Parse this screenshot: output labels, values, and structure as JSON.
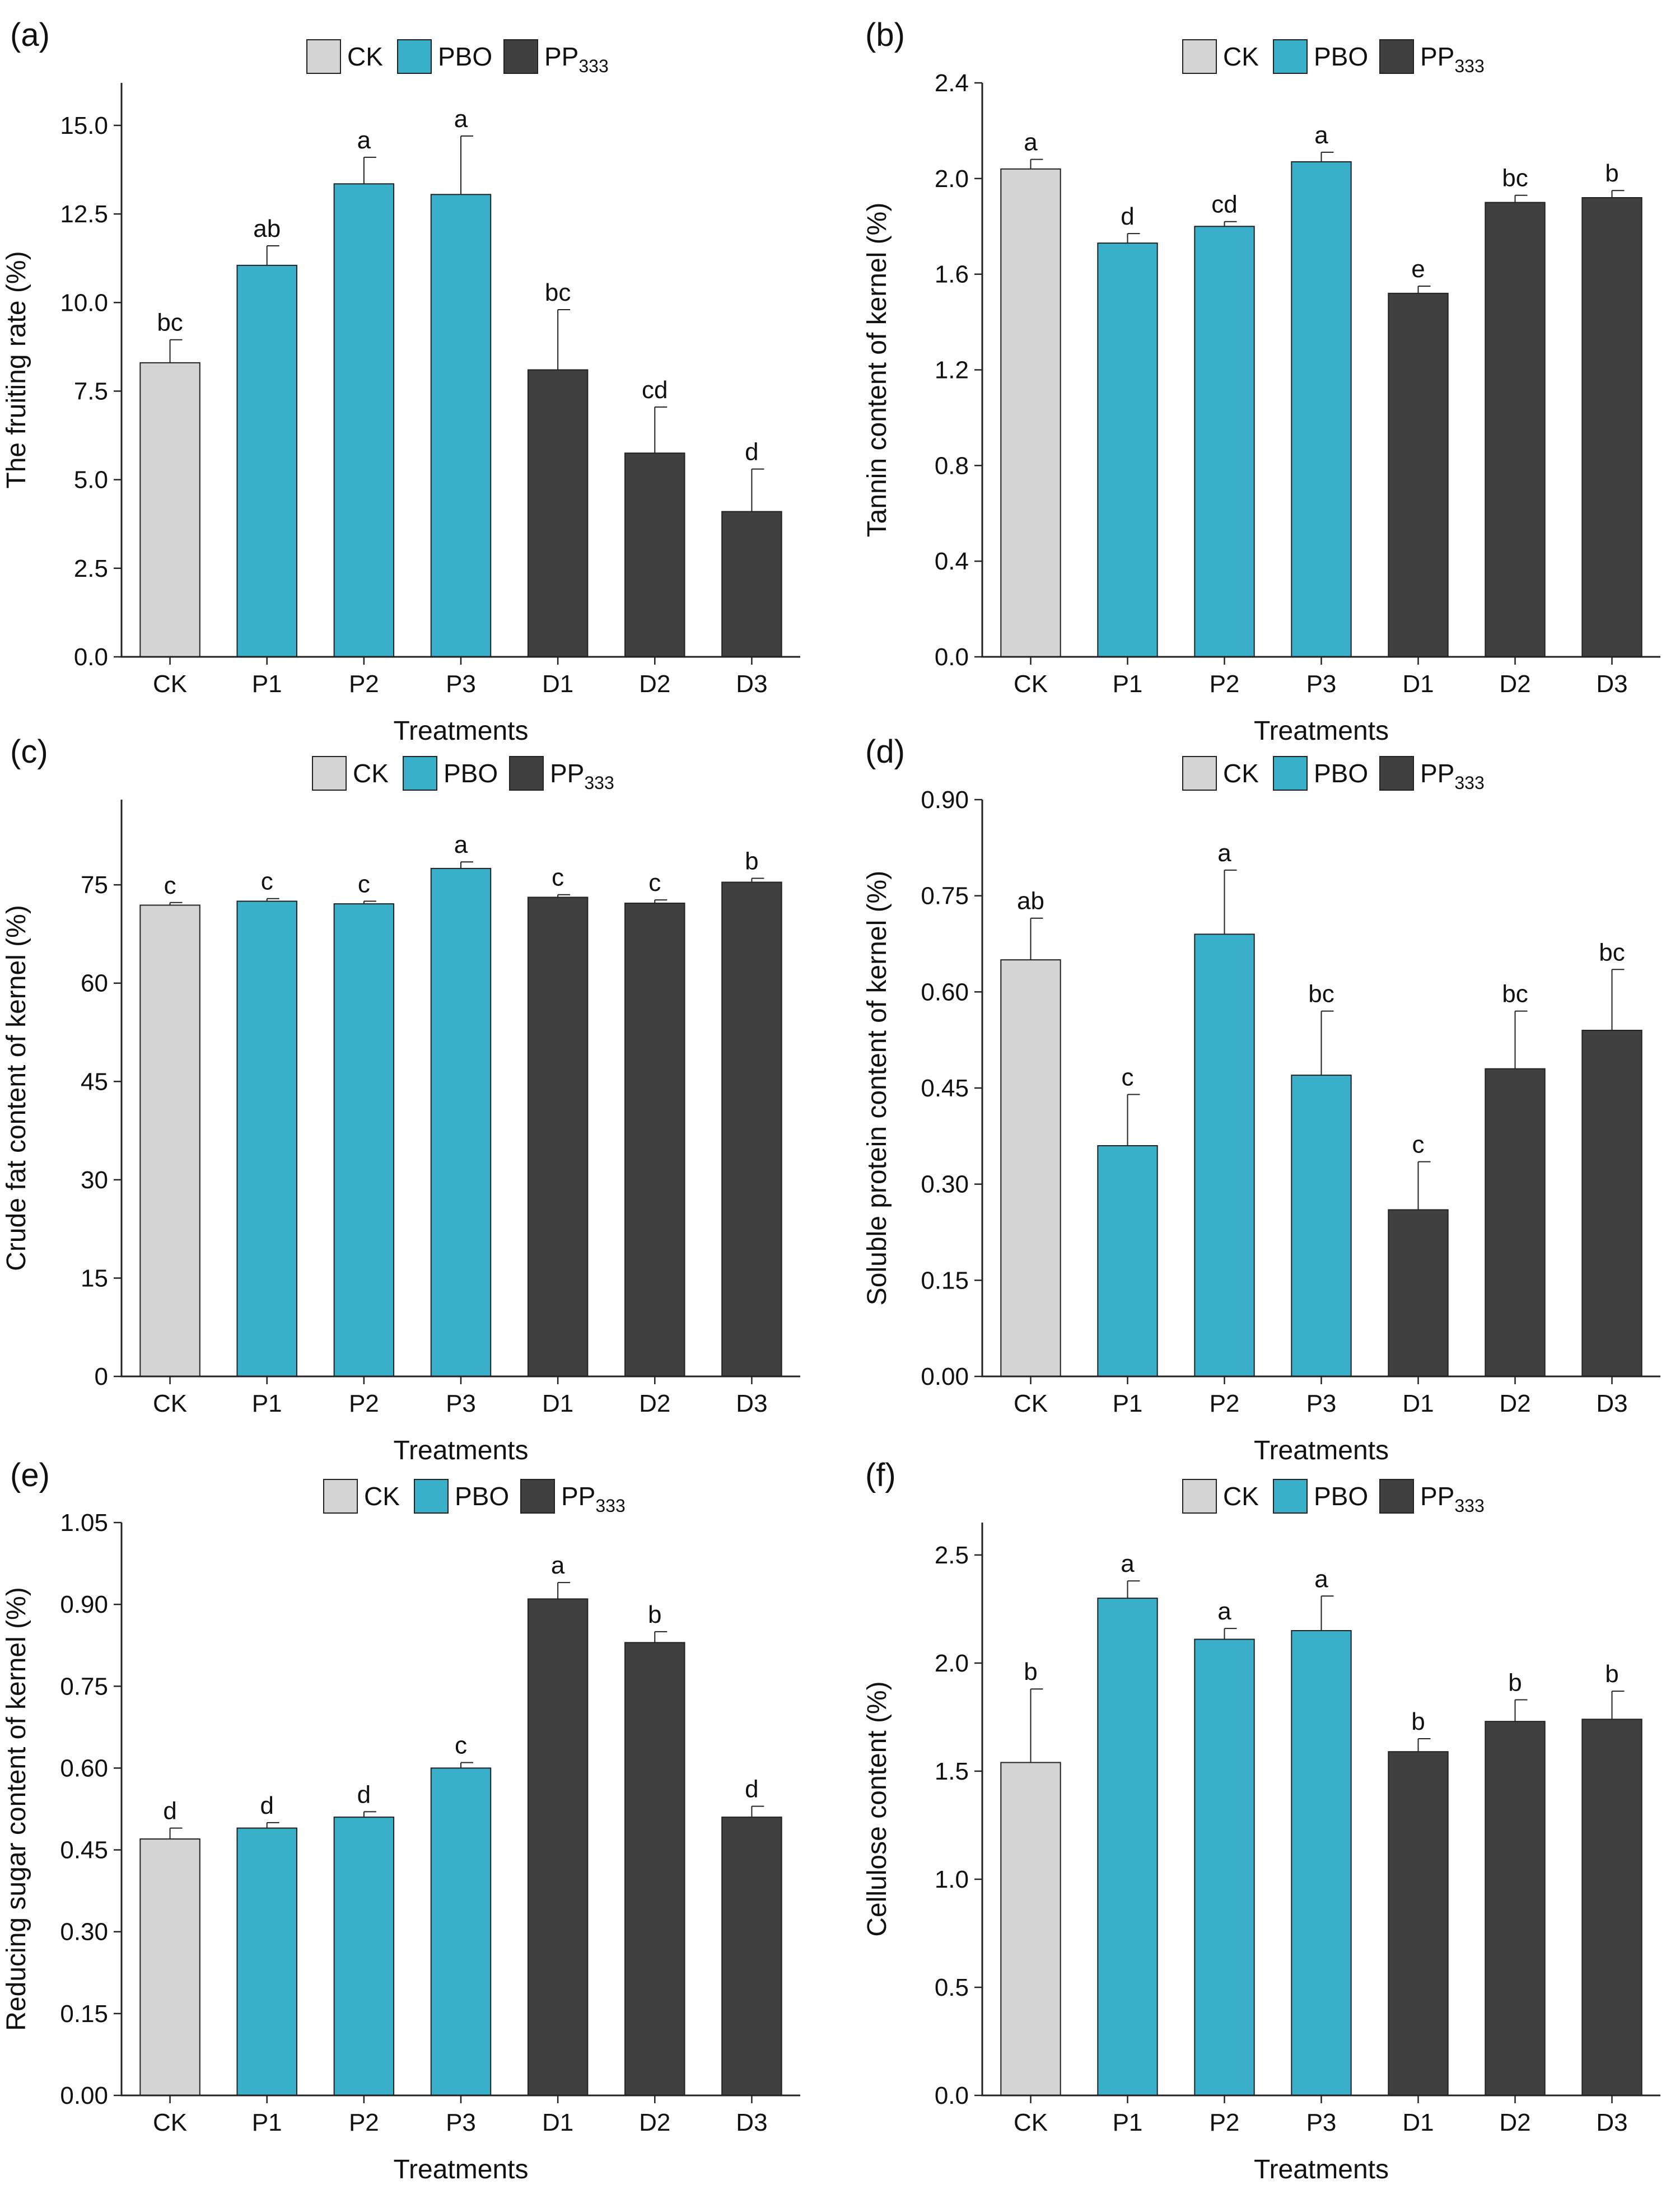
{
  "figure": {
    "legend": {
      "items": [
        {
          "key": "CK",
          "label": "CK",
          "sub": "",
          "color": "#d4d4d4"
        },
        {
          "key": "PBO",
          "label": "PBO",
          "sub": "",
          "color": "#3aafc9"
        },
        {
          "key": "PP",
          "label": "PP",
          "sub": "333",
          "color": "#404040"
        }
      ]
    }
  },
  "chart_data": [
    {
      "panel": "(a)",
      "type": "bar",
      "title": "",
      "xlabel": "Treatments",
      "ylabel": "The fruiting rate (%)",
      "categories": [
        "CK",
        "P1",
        "P2",
        "P3",
        "D1",
        "D2",
        "D3"
      ],
      "groups": [
        "CK",
        "PBO",
        "PBO",
        "PBO",
        "PP",
        "PP",
        "PP"
      ],
      "values": [
        8.3,
        11.05,
        13.35,
        13.05,
        8.1,
        5.75,
        4.1
      ],
      "errors": [
        0.65,
        0.55,
        0.75,
        1.65,
        1.7,
        1.3,
        1.2
      ],
      "letters": [
        "bc",
        "ab",
        "a",
        "a",
        "bc",
        "cd",
        "d"
      ],
      "ylim": [
        0,
        16.2
      ],
      "yticks": [
        0,
        2.5,
        5,
        7.5,
        10,
        12.5,
        15
      ],
      "ytick_labels": [
        "0.0",
        "2.5",
        "5.0",
        "7.5",
        "10.0",
        "12.5",
        "15.0"
      ]
    },
    {
      "panel": "(b)",
      "type": "bar",
      "title": "",
      "xlabel": "Treatments",
      "ylabel": "Tannin content of kernel (%)",
      "categories": [
        "CK",
        "P1",
        "P2",
        "P3",
        "D1",
        "D2",
        "D3"
      ],
      "groups": [
        "CK",
        "PBO",
        "PBO",
        "PBO",
        "PP",
        "PP",
        "PP"
      ],
      "values": [
        2.04,
        1.73,
        1.8,
        2.07,
        1.52,
        1.9,
        1.92
      ],
      "errors": [
        0.04,
        0.04,
        0.02,
        0.04,
        0.03,
        0.03,
        0.03
      ],
      "letters": [
        "a",
        "d",
        "cd",
        "a",
        "e",
        "bc",
        "b"
      ],
      "ylim": [
        0,
        2.4
      ],
      "yticks": [
        0,
        0.4,
        0.8,
        1.2,
        1.6,
        2.0,
        2.4
      ],
      "ytick_labels": [
        "0.0",
        "0.4",
        "0.8",
        "1.2",
        "1.6",
        "2.0",
        "2.4"
      ]
    },
    {
      "panel": "(c)",
      "type": "bar",
      "title": "",
      "xlabel": "Treatments",
      "ylabel": "Crude fat content of kernel (%)",
      "categories": [
        "CK",
        "P1",
        "P2",
        "P3",
        "D1",
        "D2",
        "D3"
      ],
      "groups": [
        "CK",
        "PBO",
        "PBO",
        "PBO",
        "PP",
        "PP",
        "PP"
      ],
      "values": [
        71.9,
        72.5,
        72.1,
        77.5,
        73.1,
        72.2,
        75.4
      ],
      "errors": [
        0.4,
        0.4,
        0.4,
        1.0,
        0.4,
        0.5,
        0.6
      ],
      "letters": [
        "c",
        "c",
        "c",
        "a",
        "c",
        "c",
        "b"
      ],
      "ylim": [
        0,
        88
      ],
      "yticks": [
        0,
        15,
        30,
        45,
        60,
        75
      ],
      "ytick_labels": [
        "0",
        "15",
        "30",
        "45",
        "60",
        "75"
      ]
    },
    {
      "panel": "(d)",
      "type": "bar",
      "title": "",
      "xlabel": "Treatments",
      "ylabel": "Soluble protein content of kernel (%)",
      "categories": [
        "CK",
        "P1",
        "P2",
        "P3",
        "D1",
        "D2",
        "D3"
      ],
      "groups": [
        "CK",
        "PBO",
        "PBO",
        "PBO",
        "PP",
        "PP",
        "PP"
      ],
      "values": [
        0.65,
        0.36,
        0.69,
        0.47,
        0.26,
        0.48,
        0.54
      ],
      "errors": [
        0.065,
        0.08,
        0.1,
        0.1,
        0.075,
        0.09,
        0.095
      ],
      "letters": [
        "ab",
        "c",
        "a",
        "bc",
        "c",
        "bc",
        "bc"
      ],
      "ylim": [
        0,
        0.9
      ],
      "yticks": [
        0,
        0.15,
        0.3,
        0.45,
        0.6,
        0.75,
        0.9
      ],
      "ytick_labels": [
        "0.00",
        "0.15",
        "0.30",
        "0.45",
        "0.60",
        "0.75",
        "0.90"
      ]
    },
    {
      "panel": "(e)",
      "type": "bar",
      "title": "",
      "xlabel": "Treatments",
      "ylabel": "Reducing sugar content of kernel (%)",
      "categories": [
        "CK",
        "P1",
        "P2",
        "P3",
        "D1",
        "D2",
        "D3"
      ],
      "groups": [
        "CK",
        "PBO",
        "PBO",
        "PBO",
        "PP",
        "PP",
        "PP"
      ],
      "values": [
        0.47,
        0.49,
        0.51,
        0.6,
        0.91,
        0.83,
        0.51
      ],
      "errors": [
        0.02,
        0.01,
        0.01,
        0.01,
        0.03,
        0.02,
        0.02
      ],
      "letters": [
        "d",
        "d",
        "d",
        "c",
        "a",
        "b",
        "d"
      ],
      "ylim": [
        0,
        1.05
      ],
      "yticks": [
        0,
        0.15,
        0.3,
        0.45,
        0.6,
        0.75,
        0.9,
        1.05
      ],
      "ytick_labels": [
        "0.00",
        "0.15",
        "0.30",
        "0.45",
        "0.60",
        "0.75",
        "0.90",
        "1.05"
      ]
    },
    {
      "panel": "(f)",
      "type": "bar",
      "title": "",
      "xlabel": "Treatments",
      "ylabel": "Cellulose content (%)",
      "categories": [
        "CK",
        "P1",
        "P2",
        "P3",
        "D1",
        "D2",
        "D3"
      ],
      "groups": [
        "CK",
        "PBO",
        "PBO",
        "PBO",
        "PP",
        "PP",
        "PP"
      ],
      "values": [
        1.54,
        2.3,
        2.11,
        2.15,
        1.59,
        1.73,
        1.74
      ],
      "errors": [
        0.34,
        0.08,
        0.05,
        0.16,
        0.06,
        0.1,
        0.13
      ],
      "letters": [
        "b",
        "a",
        "a",
        "a",
        "b",
        "b",
        "b"
      ],
      "ylim": [
        0,
        2.65
      ],
      "yticks": [
        0,
        0.5,
        1.0,
        1.5,
        2.0,
        2.5
      ],
      "ytick_labels": [
        "0.0",
        "0.5",
        "1.0",
        "1.5",
        "2.0",
        "2.5"
      ]
    }
  ]
}
